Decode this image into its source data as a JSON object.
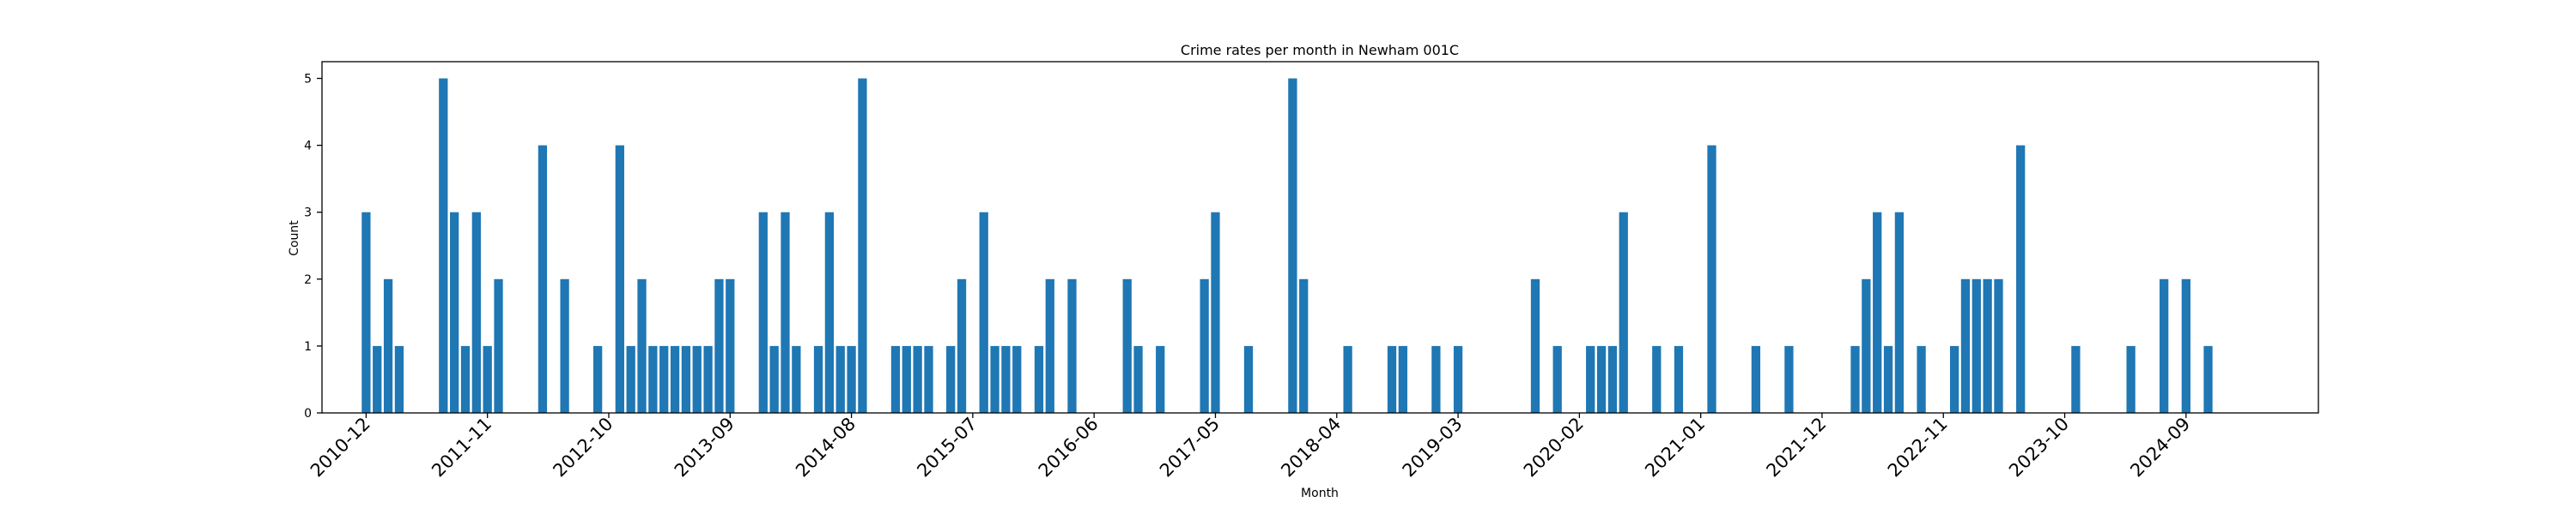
{
  "chart_data": {
    "type": "bar",
    "title": "Crime rates per month in Newham 001C",
    "xlabel": "Month",
    "ylabel": "Count",
    "ylim": [
      0,
      5.25
    ],
    "yticks": [
      "0",
      "1",
      "2",
      "3",
      "4",
      "5"
    ],
    "xticks": [
      "2010-12",
      "2011-11",
      "2012-10",
      "2013-09",
      "2014-08",
      "2015-07",
      "2016-06",
      "2017-05",
      "2018-04",
      "2019-03",
      "2020-02",
      "2021-01",
      "2021-12",
      "2022-11",
      "2023-10",
      "2024-09"
    ],
    "legend": "none",
    "grid": false,
    "color": "#1f77b4",
    "series": [
      {
        "x": [
          "2010-12",
          "2011-01",
          "2011-02",
          "2011-03",
          "2011-07",
          "2011-08",
          "2011-09",
          "2011-10",
          "2011-11",
          "2011-12",
          "2012-04",
          "2012-06",
          "2012-09",
          "2012-11",
          "2012-12",
          "2013-01",
          "2013-02",
          "2013-03",
          "2013-04",
          "2013-05",
          "2013-06",
          "2013-07",
          "2013-08",
          "2013-09",
          "2013-12",
          "2014-01",
          "2014-02",
          "2014-03",
          "2014-05",
          "2014-06",
          "2014-07",
          "2014-08",
          "2014-09",
          "2014-12",
          "2015-01",
          "2015-02",
          "2015-03",
          "2015-05",
          "2015-06",
          "2015-08",
          "2015-09",
          "2015-10",
          "2015-11",
          "2016-01",
          "2016-02",
          "2016-04",
          "2016-09",
          "2016-10",
          "2016-12",
          "2017-04",
          "2017-05",
          "2017-08",
          "2017-12",
          "2018-01",
          "2018-05",
          "2018-09",
          "2018-10",
          "2019-01",
          "2019-03",
          "2019-10",
          "2019-12",
          "2020-03",
          "2020-04",
          "2020-05",
          "2020-06",
          "2020-09",
          "2020-11",
          "2021-02",
          "2021-06",
          "2021-09",
          "2022-03",
          "2022-04",
          "2022-05",
          "2022-06",
          "2022-07",
          "2022-09",
          "2022-12",
          "2023-01",
          "2023-02",
          "2023-03",
          "2023-04",
          "2023-06",
          "2023-11",
          "2024-04",
          "2024-07",
          "2024-09",
          "2024-11"
        ],
        "values": [
          3,
          1,
          2,
          1,
          5,
          3,
          1,
          3,
          1,
          2,
          4,
          2,
          1,
          4,
          1,
          2,
          1,
          1,
          1,
          1,
          1,
          1,
          2,
          2,
          3,
          1,
          3,
          1,
          1,
          3,
          1,
          1,
          5,
          1,
          1,
          1,
          1,
          1,
          2,
          3,
          1,
          1,
          1,
          1,
          2,
          2,
          2,
          1,
          1,
          2,
          3,
          1,
          5,
          2,
          1,
          1,
          1,
          1,
          1,
          2,
          1,
          1,
          1,
          1,
          3,
          1,
          1,
          4,
          1,
          1,
          1,
          2,
          3,
          1,
          3,
          1,
          1,
          2,
          2,
          2,
          2,
          4,
          1,
          1,
          2,
          2,
          1
        ]
      }
    ]
  }
}
